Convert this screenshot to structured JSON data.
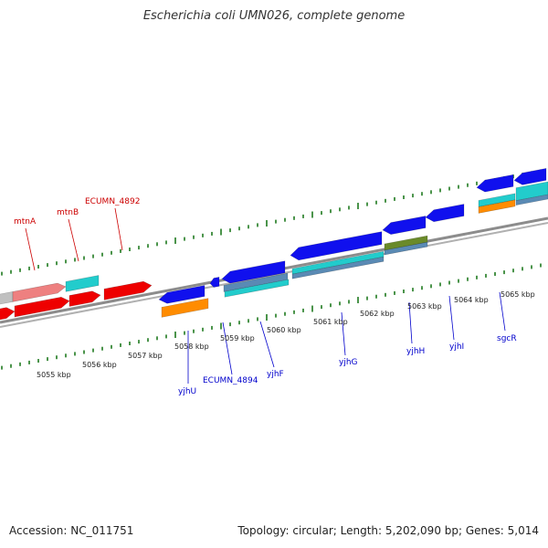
{
  "title": "Escherichia coli UMN026, complete genome",
  "footer": {
    "accession": "Accession: NC_011751",
    "topology": "Topology: circular; Length: 5,202,090 bp; Genes: 5,014"
  },
  "colors": {
    "background": "#ffffff",
    "backbone": "#8c8c8c",
    "tick": "#1e7a1e",
    "forward_label": "#cc0000",
    "reverse_label": "#0000cc",
    "forward_gene": "#ee0000",
    "forward_gene_pale": "#ee8080",
    "forward_gene_gray": "#c0c0c0",
    "reverse_gene": "#1010ee",
    "orange": "#ff8c00",
    "cyan": "#22cccc",
    "steelblue": "#5a8ab4",
    "olive": "#6a8a2a"
  },
  "scale": {
    "labels": [
      "5055 kbp",
      "5056 kbp",
      "5057 kbp",
      "5058 kbp",
      "5059 kbp",
      "5060 kbp",
      "5061 kbp",
      "5062 kbp",
      "5063 kbp",
      "5064 kbp",
      "5065 kbp"
    ]
  },
  "gene_labels": {
    "forward": [
      "mtnA",
      "mtnB",
      "ECUMN_4892"
    ],
    "reverse": [
      "yjhU",
      "ECUMN_4894",
      "yjhF",
      "yjhG",
      "yjhH",
      "yjhI",
      "sgcR"
    ]
  }
}
